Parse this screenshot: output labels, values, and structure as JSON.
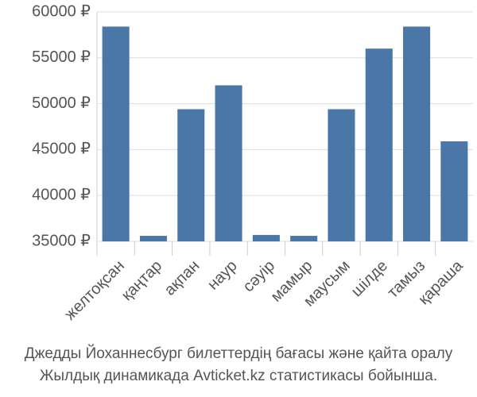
{
  "chart_data": {
    "type": "bar",
    "caption": [
      "Джедды Йоханнесбург билеттердің бағасы және қайта оралу",
      "Жылдық динамикада Avticket.kz статистикасы бойынша."
    ],
    "categories": [
      "желтоқсан",
      "қаңтар",
      "ақпан",
      "наур",
      "сәуір",
      "мамыр",
      "маусым",
      "шілде",
      "тамыз",
      "қараша"
    ],
    "values": [
      58400,
      35600,
      49400,
      52000,
      35700,
      35600,
      49400,
      56000,
      58400,
      45900
    ],
    "color": "#4a76a8",
    "ylim": [
      35000,
      60000
    ],
    "yticks": [
      {
        "value": 35000,
        "label": "35000 ₽"
      },
      {
        "value": 40000,
        "label": "40000 ₽"
      },
      {
        "value": 45000,
        "label": "45000 ₽"
      },
      {
        "value": 50000,
        "label": "50000 ₽"
      },
      {
        "value": 55000,
        "label": "55000 ₽"
      },
      {
        "value": 60000,
        "label": "60000 ₽"
      }
    ],
    "grid": true
  }
}
